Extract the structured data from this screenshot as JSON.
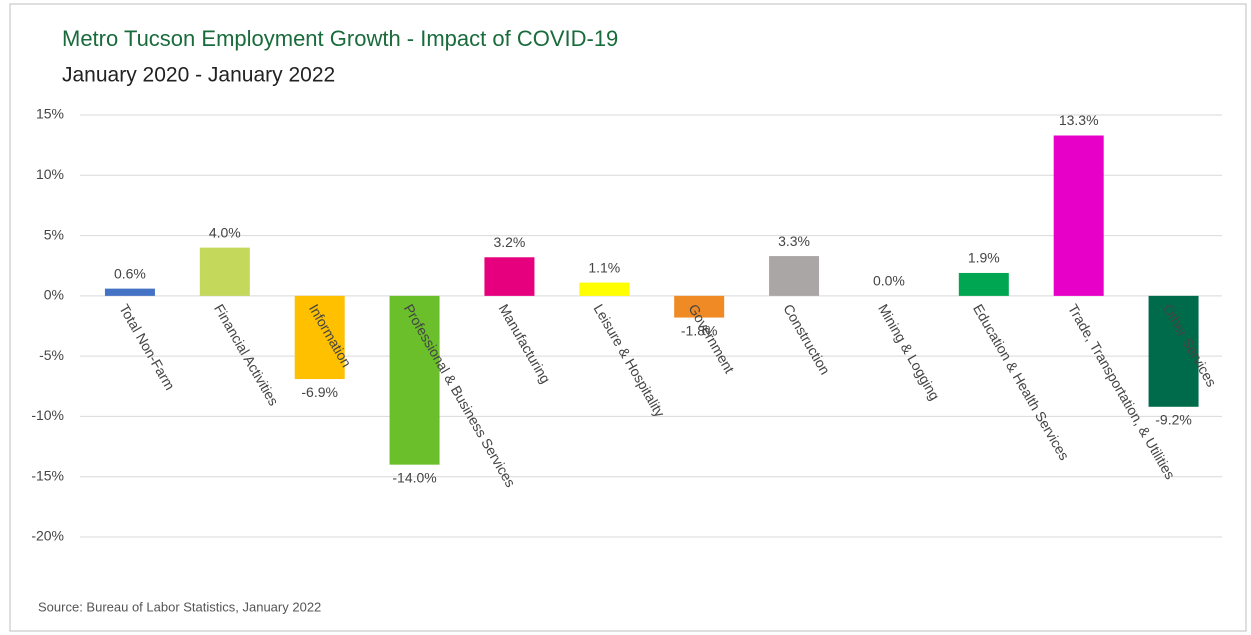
{
  "chart_data": {
    "type": "bar",
    "title": "Metro Tucson Employment Growth - Impact of COVID-19",
    "subtitle": "January 2020 - January 2022",
    "source": "Source: Bureau of Labor Statistics, January 2022",
    "categories": [
      "Total Non-Farm",
      "Financial Activities",
      "Information",
      "Professional & Business Services",
      "Manufacturing",
      "Leisure & Hospitality",
      "Government",
      "Construction",
      "Mining & Logging",
      "Education & Health Services",
      "Trade, Transportation, & Utilities",
      "Other Services"
    ],
    "values": [
      0.6,
      4.0,
      -6.9,
      -14.0,
      3.2,
      1.1,
      -1.8,
      3.3,
      0.0,
      1.9,
      13.3,
      -9.2
    ],
    "value_labels": [
      "0.6%",
      "4.0%",
      "-6.9%",
      "-14.0%",
      "3.2%",
      "1.1%",
      "-1.8%",
      "3.3%",
      "0.0%",
      "1.9%",
      "13.3%",
      "-9.2%"
    ],
    "colors": [
      "#4472c4",
      "#c4d95b",
      "#ffc000",
      "#6abf2a",
      "#e6007e",
      "#ffff00",
      "#f08a24",
      "#aba6a6",
      "#ffffff",
      "#00a651",
      "#e600c8",
      "#006b4a"
    ],
    "ylim": [
      -20,
      15
    ],
    "yticks": [
      {
        "value": -20,
        "label": "-20%"
      },
      {
        "value": -15,
        "label": "-15%"
      },
      {
        "value": -10,
        "label": "-10%"
      },
      {
        "value": -5,
        "label": "-5%"
      },
      {
        "value": 0,
        "label": "0%"
      },
      {
        "value": 5,
        "label": "5%"
      },
      {
        "value": 10,
        "label": "10%"
      },
      {
        "value": 15,
        "label": "15%"
      }
    ],
    "grid": true
  }
}
